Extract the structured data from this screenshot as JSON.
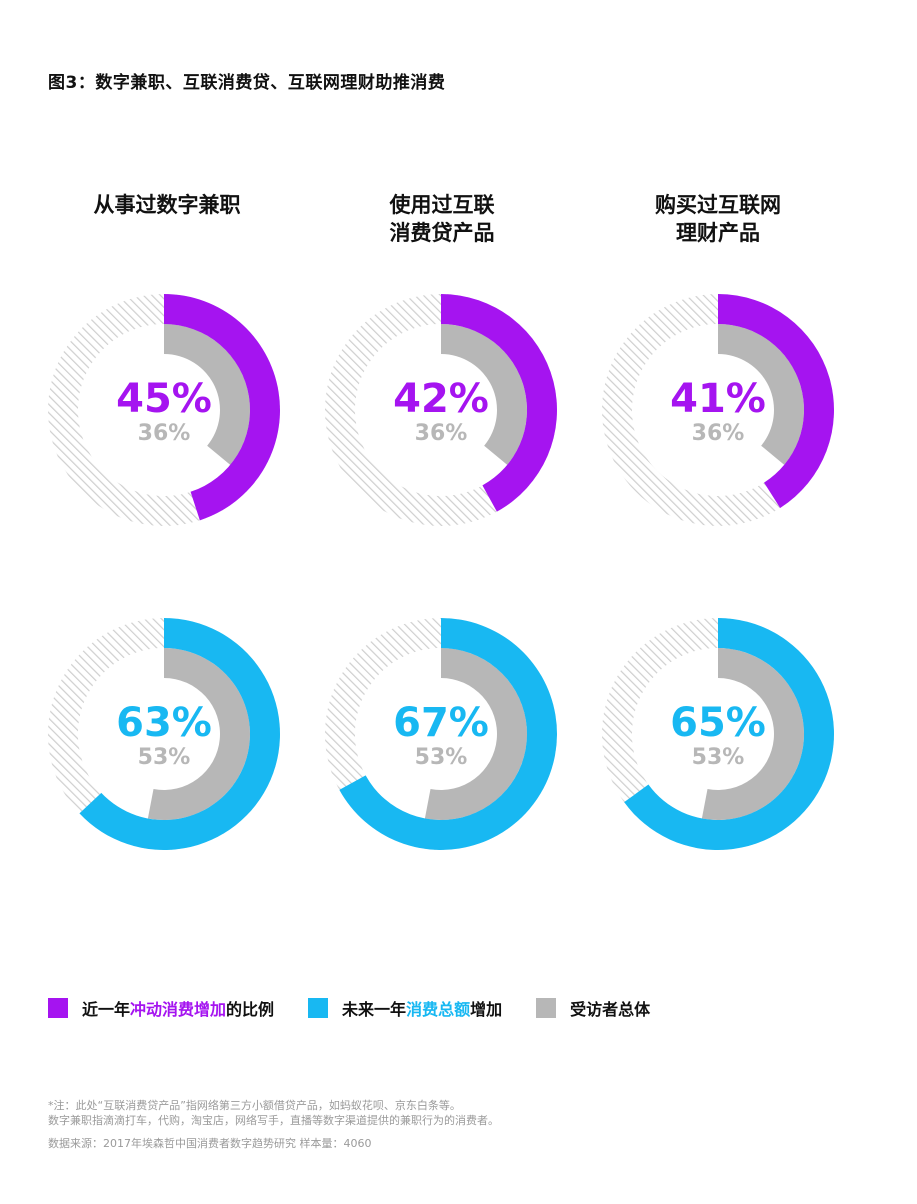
{
  "figure_title": "图3：数字兼职、互联消费贷、互联网理财助推消费",
  "columns": [
    {
      "lines": [
        "从事过数字兼职"
      ]
    },
    {
      "lines": [
        "使用过互联",
        "消费贷产品"
      ]
    },
    {
      "lines": [
        "购买过互联网",
        "理财产品"
      ]
    }
  ],
  "colors": {
    "purple": "#a514f0",
    "blue": "#18b8f2",
    "gray": "#b7b7b7",
    "hatch": "#cfcfcf"
  },
  "chart_data": [
    {
      "type": "pie",
      "group": "从事过数字兼职",
      "metric": "impulse",
      "value": 45,
      "label": "45%",
      "baseline": 36,
      "baseline_label": "36%"
    },
    {
      "type": "pie",
      "group": "使用过互联消费贷产品",
      "metric": "impulse",
      "value": 42,
      "label": "42%",
      "baseline": 36,
      "baseline_label": "36%"
    },
    {
      "type": "pie",
      "group": "购买过互联网理财产品",
      "metric": "impulse",
      "value": 41,
      "label": "41%",
      "baseline": 36,
      "baseline_label": "36%"
    },
    {
      "type": "pie",
      "group": "从事过数字兼职",
      "metric": "spending",
      "value": 63,
      "label": "63%",
      "baseline": 53,
      "baseline_label": "53%"
    },
    {
      "type": "pie",
      "group": "使用过互联消费贷产品",
      "metric": "spending",
      "value": 67,
      "label": "67%",
      "baseline": 53,
      "baseline_label": "53%"
    },
    {
      "type": "pie",
      "group": "购买过互联网理财产品",
      "metric": "spending",
      "value": 65,
      "label": "65%",
      "baseline": 53,
      "baseline_label": "53%"
    }
  ],
  "legend": {
    "item1": {
      "pre": "近一年",
      "highlight": "冲动消费增加",
      "post": "的比例"
    },
    "item2": {
      "pre": "未来一年",
      "highlight": "消费总额",
      "post": "增加"
    },
    "item3": {
      "text": "受访者总体"
    }
  },
  "notes": {
    "line1": "*注：此处“互联消费贷产品”指网络第三方小额借贷产品，如蚂蚁花呗、京东白条等。",
    "line2": "数字兼职指滴滴打车，代购，淘宝店，网络写手，直播等数字渠道提供的兼职行为的消费者。",
    "source": "数据来源：2017年埃森哲中国消费者数字趋势研究 样本量：4060"
  }
}
